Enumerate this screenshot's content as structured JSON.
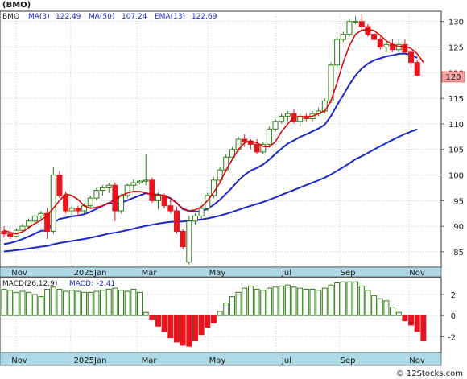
{
  "chart_data": [
    {
      "type": "candlestick",
      "title": "(BMO)",
      "ticker": "BMO",
      "legend": [
        {
          "label": "MA(3)",
          "value": "122.49",
          "color": "#dd0000"
        },
        {
          "label": "MA(50)",
          "value": "107.24",
          "color": "#1a28cc"
        },
        {
          "label": "EMA(13)",
          "value": "122.69",
          "color": "#1a28cc"
        }
      ],
      "x_labels": [
        "Nov",
        "2025Jan",
        "Mar",
        "May",
        "Jul",
        "Sep",
        "Nov"
      ],
      "y_ticks": [
        85,
        90,
        95,
        100,
        105,
        110,
        115,
        120,
        125,
        130
      ],
      "ylim": [
        82,
        132
      ],
      "last_price": "120",
      "grid": true,
      "up_color": "#2e7d14",
      "down_color": "#e8141e",
      "candles": [
        [
          89,
          90,
          87.8,
          88.5
        ],
        [
          88.5,
          89.2,
          87.5,
          88
        ],
        [
          88,
          89.6,
          87.8,
          89.2
        ],
        [
          89.2,
          90.5,
          88.8,
          90
        ],
        [
          90,
          91.5,
          89.5,
          91
        ],
        [
          91,
          92.3,
          90.5,
          92
        ],
        [
          92,
          93,
          91,
          92.5
        ],
        [
          92.5,
          93.6,
          87.5,
          89
        ],
        [
          89,
          101.5,
          88.5,
          100
        ],
        [
          100,
          100.8,
          95.5,
          96
        ],
        [
          96,
          96.8,
          92.5,
          93
        ],
        [
          93,
          94,
          91.5,
          93.5
        ],
        [
          93.5,
          94,
          92,
          93
        ],
        [
          93,
          94.5,
          92.5,
          94
        ],
        [
          94,
          96,
          93.5,
          95.5
        ],
        [
          95.5,
          97.5,
          95,
          97
        ],
        [
          97,
          98,
          96,
          97.5
        ],
        [
          97.5,
          98.5,
          96.5,
          98
        ],
        [
          98,
          98.6,
          91,
          93
        ],
        [
          93,
          96.3,
          92.5,
          96
        ],
        [
          96,
          98.3,
          95.5,
          98
        ],
        [
          98,
          99.2,
          97,
          98.5
        ],
        [
          98.5,
          99,
          98.2,
          98.8
        ],
        [
          98.8,
          104,
          98,
          99
        ],
        [
          99,
          99.5,
          94.5,
          95
        ],
        [
          95,
          96.6,
          93.3,
          96
        ],
        [
          96,
          96.4,
          93.5,
          94
        ],
        [
          94,
          95.3,
          92.5,
          93
        ],
        [
          93,
          93.8,
          88.5,
          89
        ],
        [
          89,
          89.5,
          85.5,
          86
        ],
        [
          83,
          92,
          82.5,
          91
        ],
        [
          91,
          92.5,
          90.3,
          92
        ],
        [
          92,
          94,
          91.5,
          93.5
        ],
        [
          93.5,
          96.5,
          93,
          96
        ],
        [
          96,
          99.5,
          95.5,
          99
        ],
        [
          99,
          101.5,
          98.5,
          101
        ],
        [
          101,
          104,
          100.5,
          103.5
        ],
        [
          103.5,
          105.5,
          103,
          105
        ],
        [
          105,
          107.5,
          104.5,
          107
        ],
        [
          107,
          108,
          105.5,
          106.5
        ],
        [
          106.5,
          107,
          105,
          106
        ],
        [
          106,
          107,
          104,
          104.5
        ],
        [
          104.5,
          106.5,
          104,
          106
        ],
        [
          106,
          109.5,
          105.5,
          109
        ],
        [
          109,
          111,
          108.5,
          110.5
        ],
        [
          110.5,
          112,
          110,
          111.5
        ],
        [
          111.5,
          112.5,
          110.5,
          112
        ],
        [
          112,
          112.8,
          110,
          110.5
        ],
        [
          110.5,
          112,
          109.5,
          111.5
        ],
        [
          111.5,
          112,
          110.5,
          111
        ],
        [
          111,
          112.5,
          110.5,
          112
        ],
        [
          112,
          113.2,
          111.5,
          112.5
        ],
        [
          112.5,
          115,
          112,
          114.5
        ],
        [
          114.5,
          122,
          114,
          121.5
        ],
        [
          121.5,
          127,
          121,
          126.5
        ],
        [
          126.5,
          128,
          126,
          127.5
        ],
        [
          127.5,
          130.5,
          127,
          130
        ],
        [
          130,
          131,
          129.5,
          130
        ],
        [
          130,
          131.5,
          128.5,
          129
        ],
        [
          129,
          129.5,
          127,
          127.5
        ],
        [
          127.5,
          127.8,
          126.3,
          126.5
        ],
        [
          126.5,
          127,
          124.5,
          125
        ],
        [
          125,
          126,
          124,
          125.5
        ],
        [
          125.5,
          126.5,
          124,
          124.5
        ],
        [
          124.5,
          126.5,
          124,
          125.5
        ],
        [
          125.5,
          126.5,
          124,
          124
        ],
        [
          124,
          124.6,
          121,
          122
        ],
        [
          122,
          122.5,
          119.3,
          119.5
        ]
      ],
      "ma3": [
        89.2,
        88.8,
        88.5,
        88.9,
        89.7,
        90.5,
        91.2,
        92.1,
        93.5,
        95,
        96.3,
        96,
        95.2,
        94,
        93.5,
        93.7,
        94,
        94.5,
        95.2,
        96,
        96.5,
        96.8,
        96.8,
        96.5,
        96.2,
        96.2,
        96,
        95.5,
        94.5,
        93.5,
        93,
        93.2,
        93.8,
        95,
        96.6,
        98.5,
        101,
        103,
        105,
        106.3,
        106.7,
        106.3,
        105.6,
        105.5,
        106.5,
        108.5,
        110,
        111.3,
        111.4,
        111.3,
        111.5,
        112,
        112.5,
        114.5,
        118,
        122,
        125.3,
        127.5,
        128.3,
        128.5,
        128.2,
        127.3,
        126.2,
        125.5,
        125.1,
        125.2,
        124.7,
        123.7,
        122
      ]
    },
    {
      "type": "bar",
      "title": "MACD(26,12,9)",
      "legend": [
        {
          "label": "MACD(26,12,9)",
          "value": "",
          "color": "#1a1a1a"
        },
        {
          "label": "MACD:",
          "value": "-2.41",
          "color": "#1a28cc"
        }
      ],
      "x_labels": [
        "Nov",
        "2025Jan",
        "Mar",
        "May",
        "Jul",
        "Sep",
        "Nov"
      ],
      "y_ticks": [
        -2,
        0,
        2
      ],
      "ylim": [
        -3.5,
        3.6
      ],
      "grid": true,
      "positive_color": "#2e7d14",
      "negative_color": "#e8141e",
      "values": [
        2.5,
        2.4,
        2.2,
        2.3,
        2.2,
        2.0,
        1.8,
        2.5,
        2.7,
        2.5,
        2.3,
        2.4,
        2.3,
        2.2,
        2.2,
        2.3,
        2.4,
        2.5,
        2.6,
        2.4,
        2.3,
        2.5,
        2.2,
        0.3,
        -0.4,
        -1.0,
        -1.5,
        -2.1,
        -2.5,
        -2.8,
        -2.9,
        -2.4,
        -1.8,
        -1.1,
        -0.7,
        0.4,
        1.2,
        1.8,
        2.2,
        2.6,
        2.8,
        2.5,
        2.4,
        2.6,
        2.7,
        2.8,
        2.9,
        2.7,
        2.6,
        2.5,
        2.5,
        2.4,
        2.6,
        2.9,
        3.1,
        3.2,
        3.2,
        3.2,
        2.8,
        2.4,
        1.9,
        1.6,
        1.4,
        0.8,
        0.3,
        -0.5,
        -0.9,
        -1.5,
        -2.4
      ]
    }
  ],
  "footer": {
    "copyright": "© 12Stocks.com"
  }
}
